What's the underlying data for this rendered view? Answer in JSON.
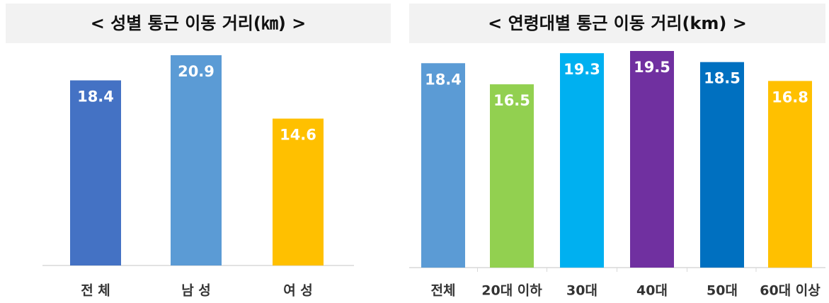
{
  "chart_data": [
    {
      "type": "bar",
      "title": "< 성별 통근 이동 거리(㎞) >",
      "categories": [
        "전 체",
        "남 성",
        "여 성"
      ],
      "values": [
        18.4,
        20.9,
        14.6
      ],
      "colors": [
        "#4472c4",
        "#5b9bd5",
        "#ffc000"
      ]
    },
    {
      "type": "bar",
      "title": "< 연령대별 통근 이동 거리(km) >",
      "categories": [
        "전체",
        "20대 이하",
        "30대",
        "40대",
        "50대",
        "60대 이상"
      ],
      "values": [
        18.4,
        16.5,
        19.3,
        19.5,
        18.5,
        16.8
      ],
      "colors": [
        "#5b9bd5",
        "#92d050",
        "#00b0f0",
        "#7030a0",
        "#0070c0",
        "#ffc000"
      ]
    }
  ]
}
